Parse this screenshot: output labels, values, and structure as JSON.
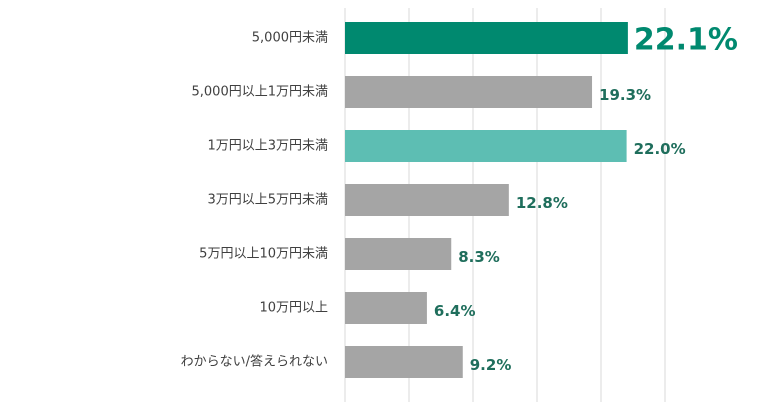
{
  "chart_data": {
    "type": "bar",
    "orientation": "horizontal",
    "title": "",
    "xlabel": "",
    "ylabel": "",
    "xlim": [
      0,
      25
    ],
    "grid": true,
    "legend": "none",
    "categories": [
      "5,000円未満",
      "5,000円以上1万円未満",
      "1万円以上3万円未満",
      "3万円以上5万円未満",
      "5万円以上10万円未満",
      "10万円以上",
      "わからない/答えられない"
    ],
    "values": [
      22.1,
      19.3,
      22.0,
      12.8,
      8.3,
      6.4,
      9.2
    ],
    "value_labels": [
      "22.1%",
      "19.3%",
      "22.0%",
      "12.8%",
      "8.3%",
      "6.4%",
      "9.2%"
    ],
    "highlight": [
      0
    ],
    "colors": {
      "primary": "#00896F",
      "secondary": "#5DBEB3",
      "default": "#A5A5A5",
      "label": "#1F6E5C",
      "axis_text": "#404040",
      "grid": "#D9D9D9"
    },
    "bar_colors": [
      "primary",
      "default",
      "secondary",
      "default",
      "default",
      "default",
      "default"
    ]
  }
}
